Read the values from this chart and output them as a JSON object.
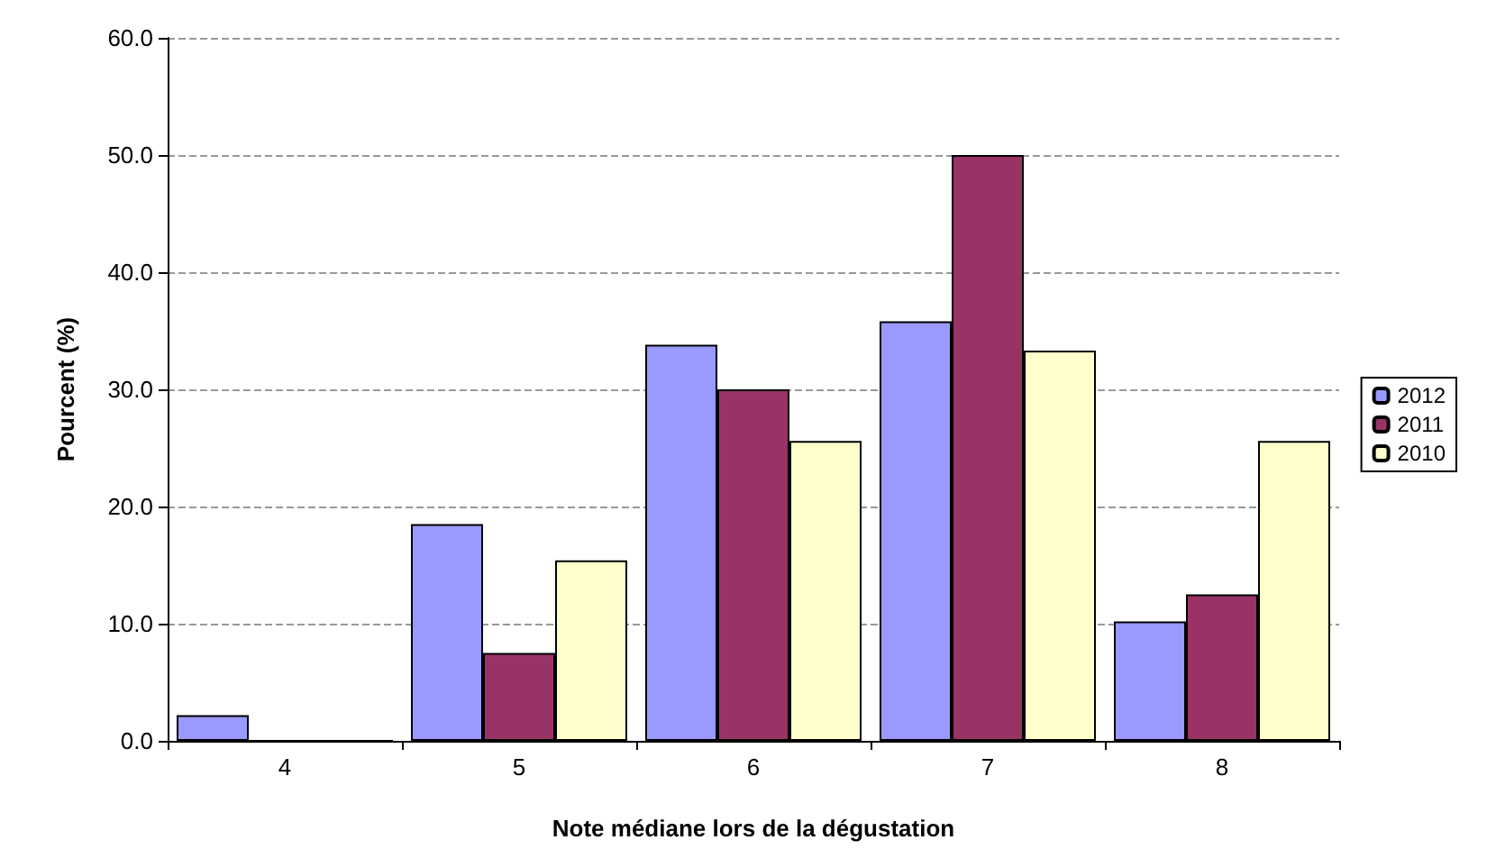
{
  "chart_data": {
    "type": "bar",
    "xlabel": "Note médiane lors de la dégustation",
    "ylabel": "Pourcent (%)",
    "categories": [
      "4",
      "5",
      "6",
      "7",
      "8"
    ],
    "series": [
      {
        "name": "2012",
        "color": "#9999ff",
        "values": [
          2.2,
          18.5,
          33.8,
          35.8,
          10.2
        ]
      },
      {
        "name": "2011",
        "color": "#993366",
        "values": [
          0,
          7.5,
          30.0,
          50.0,
          12.5
        ]
      },
      {
        "name": "2010",
        "color": "#ffffcc",
        "values": [
          0,
          15.4,
          25.6,
          33.3,
          25.6
        ]
      }
    ],
    "ylim": [
      0,
      60
    ],
    "yticks": [
      {
        "value": 0,
        "label": "0.0"
      },
      {
        "value": 10,
        "label": "10.0"
      },
      {
        "value": 20,
        "label": "20.0"
      },
      {
        "value": 30,
        "label": "30.0"
      },
      {
        "value": 40,
        "label": "40.0"
      },
      {
        "value": 50,
        "label": "50.0"
      },
      {
        "value": 60,
        "label": "60.0"
      }
    ],
    "grid": "y",
    "legend": "right"
  }
}
